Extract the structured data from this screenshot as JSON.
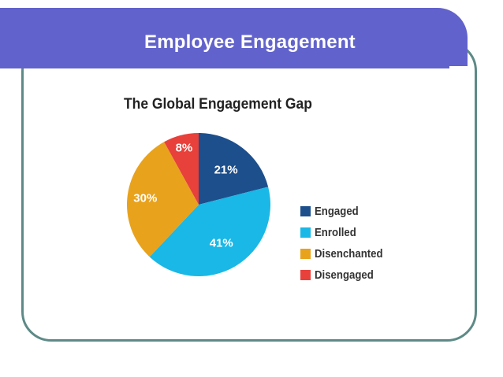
{
  "slide": {
    "title": "Employee Engagement"
  },
  "colors": {
    "banner": "#6262cc",
    "frame": "#5d8a86"
  },
  "chart_data": {
    "type": "pie",
    "title": "The Global Engagement Gap",
    "legend_position": "right",
    "slices": [
      {
        "label": "Engaged",
        "value": 21,
        "display": "21%",
        "color": "#1d4f8c"
      },
      {
        "label": "Enrolled",
        "value": 41,
        "display": "41%",
        "color": "#19b8e6"
      },
      {
        "label": "Disenchanted",
        "value": 30,
        "display": "30%",
        "color": "#e8a21c"
      },
      {
        "label": "Disengaged",
        "value": 8,
        "display": "8%",
        "color": "#e8403a"
      }
    ]
  }
}
